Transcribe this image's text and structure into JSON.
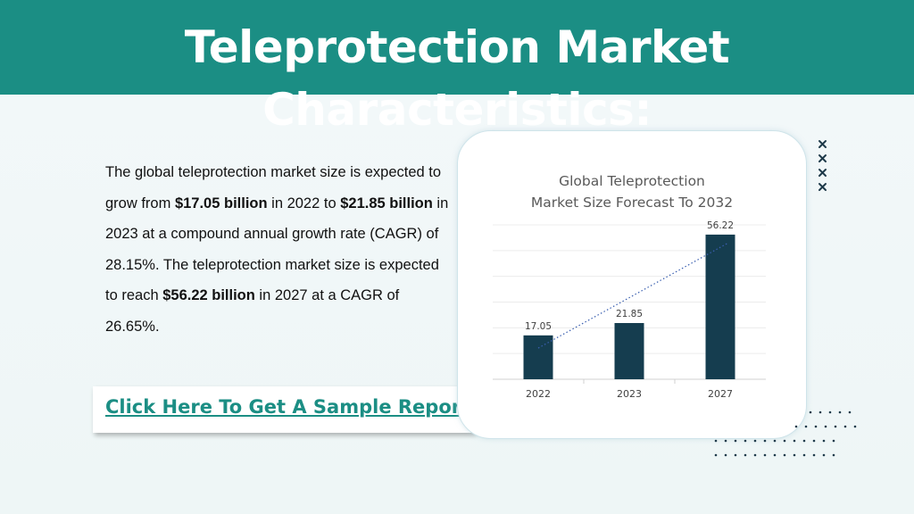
{
  "header": {
    "title": "Teleprotection Market Characteristics:"
  },
  "description": {
    "intro": "The global teleprotection market size is expected to grow from ",
    "value_2022": "$17.05 billion",
    "mid1": " in 2022 to ",
    "value_2023": "$21.85 billion",
    "mid2": " in 2023 at a compound annual growth rate (CAGR) of 28.15%. The teleprotection market size is expected to reach ",
    "value_2027": "$56.22 billion",
    "end": " in 2027 at a CAGR of 26.65%."
  },
  "cta": {
    "label": "Click Here To Get A Sample Report"
  },
  "colors": {
    "header": "#1b8e84",
    "bar": "#153d4f",
    "link": "#1b8e84",
    "trendline": "#3a5fb0"
  },
  "chart_data": {
    "type": "bar",
    "title_line1": "Global Teleprotection",
    "title_line2": "Market Size Forecast To 2032",
    "categories": [
      "2022",
      "2023",
      "2027"
    ],
    "values": [
      17.05,
      21.85,
      56.22
    ],
    "ylim": [
      0,
      60
    ],
    "grid": true,
    "trendline": "linear, dotted",
    "legend": "none"
  }
}
